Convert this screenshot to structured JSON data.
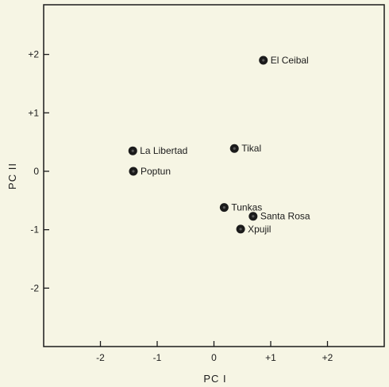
{
  "chart_data": {
    "type": "scatter",
    "title": "",
    "xlabel": "PC I",
    "ylabel": "PC II",
    "xlim": [
      -3.0,
      3.0
    ],
    "ylim": [
      -3.0,
      2.85
    ],
    "xticks": [
      -2,
      -1,
      0,
      1,
      2
    ],
    "xtick_labels": [
      "-2",
      "-1",
      "0",
      "+1",
      "+2"
    ],
    "yticks": [
      2,
      1,
      0,
      -1,
      -2
    ],
    "ytick_labels": [
      "+2",
      "+1",
      "0",
      "-1",
      "-2"
    ],
    "grid": false,
    "points": [
      {
        "label": "El Ceibal",
        "x": 0.87,
        "y": 1.9
      },
      {
        "label": "Tikal",
        "x": 0.36,
        "y": 0.39
      },
      {
        "label": "La Libertad",
        "x": -1.43,
        "y": 0.35
      },
      {
        "label": "Poptun",
        "x": -1.42,
        "y": 0.0
      },
      {
        "label": "Tunkas",
        "x": 0.18,
        "y": -0.62
      },
      {
        "label": "Santa Rosa",
        "x": 0.69,
        "y": -0.77
      },
      {
        "label": "Xpujil",
        "x": 0.47,
        "y": -0.99
      }
    ],
    "colors": {
      "background": "#f6f5e4",
      "ink": "#1b1b1b"
    }
  }
}
